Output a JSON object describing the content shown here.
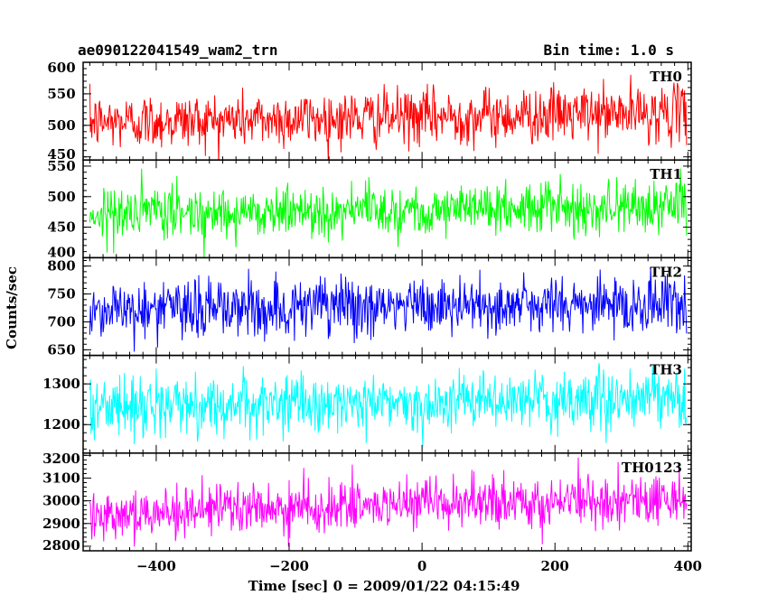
{
  "header": {
    "title": "ae090122041549_wam2_trn",
    "bin_time": "Bin time: 1.0 s"
  },
  "chart_data": {
    "type": "line",
    "xlabel": "Time [sec] 0 = 2009/01/22 04:15:49",
    "ylabel": "Counts/sec",
    "xlim": [
      -510,
      405
    ],
    "xticks": [
      -400,
      -200,
      0,
      200,
      400
    ],
    "xtick_labels": [
      "−400",
      "−200",
      "0",
      "200",
      "400"
    ],
    "x_start": -500,
    "x_end": 398,
    "x_step": 1,
    "grid": false,
    "legend": "none",
    "series": [
      {
        "name": "TH0",
        "color": "#ff0000",
        "ylim": [
          445,
          600
        ],
        "yticks": [
          450,
          500,
          550,
          600
        ],
        "ytick_labels": [
          "450",
          "500",
          "550",
          "600"
        ],
        "mean_start": 505,
        "mean_end": 520,
        "noise_sd": 22
      },
      {
        "name": "TH1",
        "color": "#00ff00",
        "ylim": [
          400,
          560
        ],
        "yticks": [
          400,
          450,
          500,
          550
        ],
        "ytick_labels": [
          "400",
          "450",
          "500",
          "550"
        ],
        "mean_start": 472,
        "mean_end": 485,
        "noise_sd": 21
      },
      {
        "name": "TH2",
        "color": "#0000ff",
        "ylim": [
          640,
          815
        ],
        "yticks": [
          650,
          700,
          750,
          800
        ],
        "ytick_labels": [
          "650",
          "700",
          "750",
          "800"
        ],
        "mean_start": 722,
        "mean_end": 732,
        "noise_sd": 27
      },
      {
        "name": "TH3",
        "color": "#00ffff",
        "ylim": [
          1130,
          1370
        ],
        "yticks": [
          1200,
          1300
        ],
        "ytick_labels": [
          "1200",
          "1300"
        ],
        "mean_start": 1245,
        "mean_end": 1262,
        "noise_sd": 35
      },
      {
        "name": "TH0123",
        "color": "#ff00ff",
        "ylim": [
          2780,
          3210
        ],
        "yticks": [
          2800,
          2900,
          3000,
          3100,
          3200
        ],
        "ytick_labels": [
          "2800",
          "2900",
          "3000",
          "3100",
          "3200"
        ],
        "mean_start": 2945,
        "mean_end": 3010,
        "noise_sd": 55
      }
    ]
  }
}
